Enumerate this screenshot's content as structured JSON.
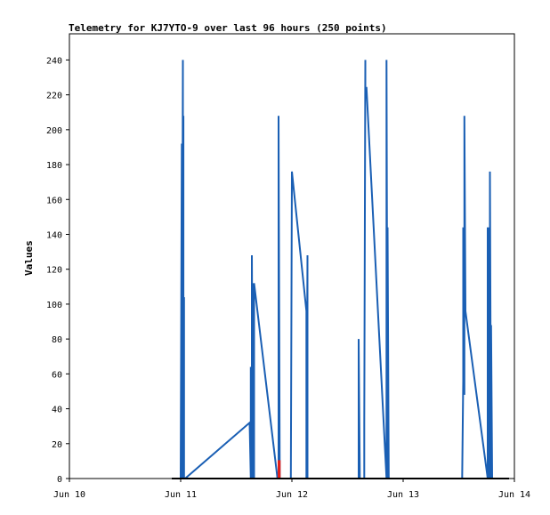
{
  "chart_data": {
    "type": "line",
    "title": "Telemetry for KJ7YTO-9 over last 96 hours (250 points)",
    "xlabel": "",
    "ylabel": "Values",
    "x_tick_labels": [
      "Jun 10",
      "Jun 11",
      "Jun 12",
      "Jun 13",
      "Jun 14"
    ],
    "y_ticks": [
      0,
      20,
      40,
      60,
      80,
      100,
      120,
      140,
      160,
      180,
      200,
      220,
      240
    ],
    "xlim_days": [
      0,
      4
    ],
    "ylim": [
      0,
      255
    ],
    "grid": false,
    "legend": "none",
    "colors": {
      "primary": "#1a5fb4",
      "secondary": "#e0201b",
      "baseline": "#000000"
    },
    "series": [
      {
        "color": "#1a5fb4",
        "x": [
          0.93,
          1.0,
          1.01,
          1.01,
          1.02,
          1.02,
          1.025,
          1.025,
          1.03,
          1.03,
          1.04,
          1.62,
          1.63,
          1.63,
          1.64,
          1.64,
          1.65,
          1.65,
          1.66,
          1.66,
          1.87,
          1.88,
          1.88,
          1.89,
          1.99,
          2.0,
          2.0,
          2.13,
          2.13,
          2.14,
          2.14,
          2.15,
          2.6,
          2.6,
          2.61,
          2.65,
          2.65,
          2.66,
          2.66,
          2.67,
          2.85,
          2.85,
          2.86,
          2.86,
          2.87,
          2.87,
          2.88,
          3.53,
          3.54,
          3.54,
          3.55,
          3.55,
          3.56,
          3.76,
          3.76,
          3.77,
          3.77,
          3.78,
          3.78,
          3.79,
          3.79,
          3.8,
          3.95
        ],
        "y": [
          0,
          0,
          192,
          0,
          240,
          0,
          208,
          0,
          104,
          0,
          0,
          32,
          0,
          64,
          0,
          128,
          0,
          112,
          0,
          112,
          0,
          0,
          208,
          0,
          0,
          176,
          176,
          96,
          0,
          128,
          0,
          0,
          0,
          80,
          0,
          0,
          32,
          240,
          224,
          224,
          0,
          240,
          0,
          144,
          0,
          0,
          0,
          0,
          56,
          144,
          48,
          208,
          96,
          0,
          144,
          0,
          144,
          0,
          176,
          0,
          88,
          0,
          0
        ]
      },
      {
        "color": "#e0201b",
        "x": [
          1.88,
          1.88,
          1.89,
          1.89
        ],
        "y": [
          0,
          10,
          10,
          0
        ]
      }
    ]
  }
}
